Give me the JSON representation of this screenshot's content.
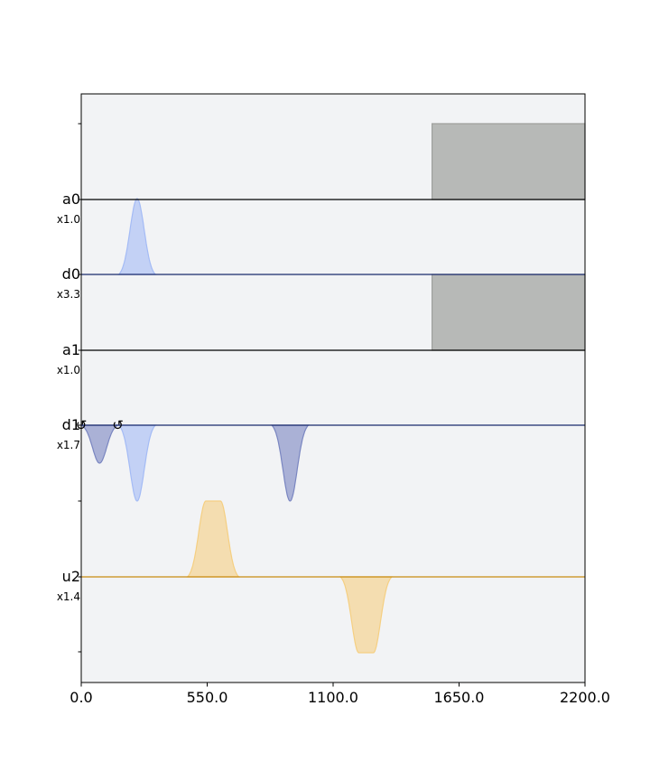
{
  "chart_data": {
    "type": "area",
    "title": "",
    "xlabel": "",
    "ylabel": "",
    "xlim": [
      0,
      2200
    ],
    "x_ticks": [
      "0.0",
      "550.0",
      "1100.0",
      "1650.0",
      "2200.0"
    ],
    "x_tick_values": [
      0,
      550,
      1100,
      1650,
      2200
    ],
    "grid": false,
    "legend": "none",
    "colors": {
      "background": "#f2f3f5",
      "acquire": "#9ea09d",
      "drive_light": "#a4bbf5",
      "drive_dark": "#7a86c1",
      "control": "#f5cf82",
      "channel_line_a": "#000000",
      "channel_line_d": "#1a2a6c",
      "channel_line_u": "#c88a10"
    },
    "channels": [
      {
        "name": "a0",
        "scale": "x1.0",
        "color": "#9ea09d"
      },
      {
        "name": "d0",
        "scale": "x3.3",
        "color": "#a4bbf5"
      },
      {
        "name": "a1",
        "scale": "x1.0",
        "color": "#9ea09d"
      },
      {
        "name": "d1",
        "scale": "x1.7",
        "color": "#7a86c1"
      },
      {
        "name": "u2",
        "scale": "x1.4",
        "color": "#f5cf82"
      }
    ],
    "pulses": [
      {
        "channel": "a0",
        "shape": "box",
        "start": 1532,
        "end": 2200,
        "amp": 1.0,
        "color": "#9ea09d"
      },
      {
        "channel": "d0",
        "shape": "gaussian",
        "center": 244,
        "width": 160,
        "amp": 1.0,
        "color": "#a4bbf5"
      },
      {
        "channel": "a1",
        "shape": "box",
        "start": 1532,
        "end": 2200,
        "amp": 1.0,
        "color": "#9ea09d"
      },
      {
        "channel": "d1",
        "shape": "gaussian",
        "center": 80,
        "width": 160,
        "amp": -0.5,
        "color": "#7a86c1"
      },
      {
        "channel": "d1",
        "shape": "gaussian",
        "center": 244,
        "width": 160,
        "amp": -1.0,
        "color": "#a4bbf5"
      },
      {
        "channel": "d1",
        "shape": "gaussian",
        "center": 912,
        "width": 160,
        "amp": -1.0,
        "color": "#7a86c1"
      },
      {
        "channel": "u2",
        "shape": "gaussian_square",
        "center": 576,
        "width": 224,
        "flat": 64,
        "amp": 1.0,
        "color": "#f5cf82"
      },
      {
        "channel": "u2",
        "shape": "gaussian_square",
        "center": 1244,
        "width": 224,
        "flat": 64,
        "amp": -1.0,
        "color": "#f5cf82"
      }
    ],
    "phase_markers": [
      {
        "channel": "d1",
        "time": 0,
        "glyph": "↺"
      },
      {
        "channel": "d1",
        "time": 160,
        "glyph": "↺"
      }
    ]
  }
}
